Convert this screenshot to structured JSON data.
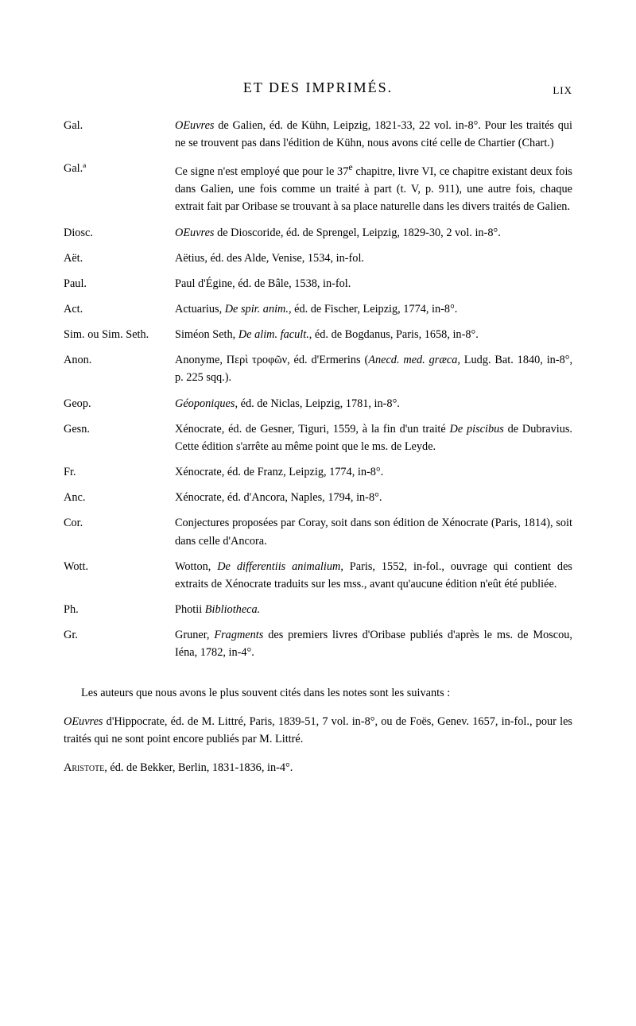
{
  "header": {
    "title": "ET DES IMPRIMÉS.",
    "page_number": "LIX"
  },
  "entries": [
    {
      "abbr": "Gal.",
      "desc": "<i>OEuvres</i> de Galien, éd. de Kühn, Leipzig, 1821-33, 22 vol. in-8°. Pour les traités qui ne se trouvent pas dans l'édition de Kühn, nous avons cité celle de Chartier (Chart.)"
    },
    {
      "abbr": "Gal.ª",
      "desc": "Ce signe n'est employé que pour le 37<sup>e</sup> chapitre, livre VI, ce chapitre existant deux fois dans Galien, une fois comme un traité à part (t. V, p. 911), une autre fois, chaque extrait fait par Oribase se trouvant à sa place naturelle dans les divers traités de Galien."
    },
    {
      "abbr": "Diosc.",
      "desc": "<i>OEuvres</i> de Dioscoride, éd. de Sprengel, Leipzig, 1829-30, 2 vol. in-8°."
    },
    {
      "abbr": "Aët.",
      "desc": "Aëtius, éd. des Alde, Venise, 1534, in-fol."
    },
    {
      "abbr": "Paul.",
      "desc": "Paul d'Égine, éd. de Bâle, 1538, in-fol."
    },
    {
      "abbr": "Act.",
      "desc": "Actuarius, <i>De spir. anim.,</i> éd. de Fischer, Leipzig, 1774, in-8°."
    },
    {
      "abbr": "Sim. ou Sim. Seth.",
      "desc": "Siméon Seth, <i>De alim. facult.,</i> éd. de Bogdanus, Paris, 1658, in-8°."
    },
    {
      "abbr": "Anon.",
      "desc": "Anonyme, Περὶ τροφῶν, éd. d'Ermerins (<i>Anecd. med. græca,</i> Ludg. Bat. 1840, in-8°, p. 225 sqq.)."
    },
    {
      "abbr": "Geop.",
      "desc": "<i>Géoponiques,</i> éd. de Niclas, Leipzig, 1781, in-8°."
    },
    {
      "abbr": "Gesn.",
      "desc": "Xénocrate, éd. de Gesner, Tiguri, 1559, à la fin d'un traité <i>De piscibus</i> de Dubravius. Cette édition s'arrête au même point que le ms. de Leyde."
    },
    {
      "abbr": "Fr.",
      "desc": "Xénocrate, éd. de Franz, Leipzig, 1774, in-8°."
    },
    {
      "abbr": "Anc.",
      "desc": "Xénocrate, éd. d'Ancora, Naples, 1794, in-8°."
    },
    {
      "abbr": "Cor.",
      "desc": "Conjectures proposées par Coray, soit dans son édition de Xénocrate (Paris, 1814), soit dans celle d'Ancora."
    },
    {
      "abbr": "Wott.",
      "desc": "Wotton, <i>De differentiis animalium,</i> Paris, 1552, in-fol., ouvrage qui contient des extraits de Xénocrate traduits sur les mss., avant qu'aucune édition n'eût été publiée."
    },
    {
      "abbr": "Ph.",
      "desc": "Photii <i>Bibliotheca.</i>"
    },
    {
      "abbr": "Gr.",
      "desc": "Gruner, <i>Fragments</i> des premiers livres d'Oribase publiés d'après le ms. de Moscou, Iéna, 1782, in-4°."
    }
  ],
  "paragraphs": [
    "Les auteurs que nous avons le plus souvent cités dans les notes sont les suivants :",
    "<i>OEuvres</i> d'Hippocrate, éd. de M. Littré, Paris, 1839-51, 7 vol. in-8°, ou de Foës, Genev. 1657, in-fol., pour les traités qui ne sont point encore publiés par M. Littré.",
    "<span style='font-variant: small-caps;'>Aristote</span>, éd. de Bekker, Berlin, 1831-1836, in-4°."
  ]
}
